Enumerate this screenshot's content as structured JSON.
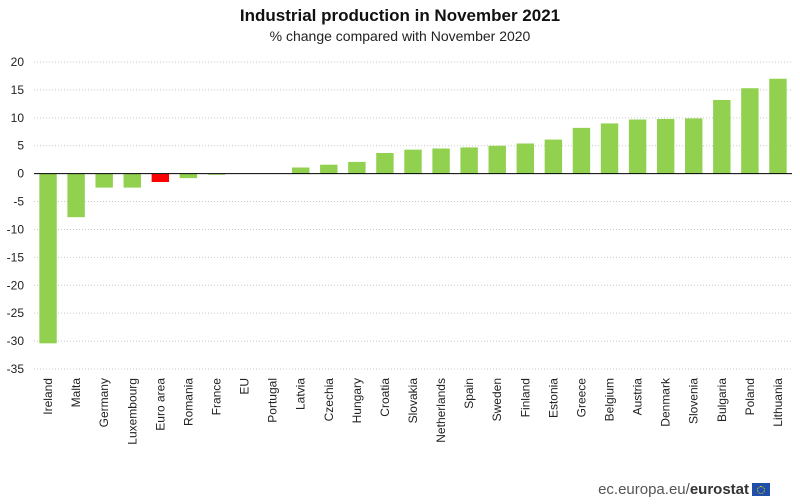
{
  "chart_data": {
    "type": "bar",
    "title": "Industrial production in November 2021",
    "subtitle": "% change compared with November 2020",
    "categories": [
      "Ireland",
      "Malta",
      "Germany",
      "Luxembourg",
      "Euro area",
      "Romania",
      "France",
      "EU",
      "Portugal",
      "Latvia",
      "Czechia",
      "Hungary",
      "Croatia",
      "Slovakia",
      "Netherlands",
      "Spain",
      "Sweden",
      "Finland",
      "Estonia",
      "Greece",
      "Belgium",
      "Austria",
      "Denmark",
      "Slovenia",
      "Bulgaria",
      "Poland",
      "Lithuania"
    ],
    "values": [
      -30.4,
      -7.8,
      -2.5,
      -2.5,
      -1.5,
      -0.8,
      -0.2,
      0,
      0,
      1.1,
      1.6,
      2.1,
      3.7,
      4.3,
      4.5,
      4.7,
      5.0,
      5.4,
      6.1,
      8.2,
      9.0,
      9.7,
      9.8,
      9.9,
      13.2,
      15.3,
      17.0
    ],
    "highlight": [
      "Euro area"
    ],
    "ylim": [
      -35,
      20
    ],
    "yticks": [
      20,
      15,
      10,
      5,
      0,
      -5,
      -10,
      -15,
      -20,
      -25,
      -30,
      -35
    ],
    "grid": true,
    "colors": {
      "bar": "#92d050",
      "highlight": "#ff0000",
      "grid": "#c8c8c8",
      "axis": "#000000"
    }
  },
  "source": {
    "domain": "ec.europa.eu/",
    "brand": "eurostat"
  }
}
